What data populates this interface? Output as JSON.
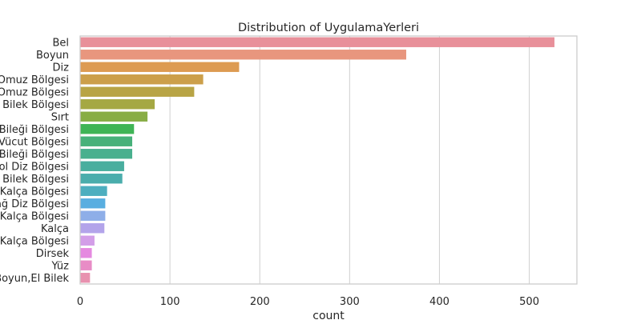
{
  "chart_data": {
    "type": "bar",
    "orientation": "horizontal",
    "title": "Distribution of UygulamaYerleri",
    "xlabel": "count",
    "ylabel": "",
    "xlim": [
      0,
      553
    ],
    "xticks": [
      0,
      100,
      200,
      300,
      400,
      500
    ],
    "grid": "vertical",
    "categories": [
      "Bel",
      "Boyun",
      "Diz",
      "Sağ Omuz Bölgesi",
      "Sol Omuz Bölgesi",
      "Sağ El Bilek Bölgesi",
      "Sırt",
      "Sağ Ayak Bileği Bölgesi",
      "Tüm Vücut Bölgesi",
      "Sol Ayak Bileği Bölgesi",
      "Sol Diz Bölgesi",
      "Sol El Bilek Bölgesi",
      "Sağ Kalça Bölgesi",
      "Sağ Diz Bölgesi",
      "Sol Kalça Bölgesi",
      "Kalça",
      "Sağ Kalça Bölgesi",
      "Dirsek",
      "Yüz",
      "Boyun,El Bilek"
    ],
    "values": [
      528,
      363,
      177,
      137,
      127,
      83,
      75,
      60,
      58,
      58,
      49,
      47,
      30,
      28,
      28,
      27,
      16,
      13,
      13,
      11
    ],
    "colors": [
      "#e8909a",
      "#e8967e",
      "#dd9b52",
      "#cc9f4a",
      "#b8a445",
      "#a5a843",
      "#88ad45",
      "#3fb456",
      "#47b17a",
      "#49b08e",
      "#49ae9e",
      "#4aadac",
      "#4daebf",
      "#59aee0",
      "#8eaee8",
      "#b3a4ea",
      "#d39ee8",
      "#e58ae0",
      "#e88cc6",
      "#e891af"
    ]
  }
}
